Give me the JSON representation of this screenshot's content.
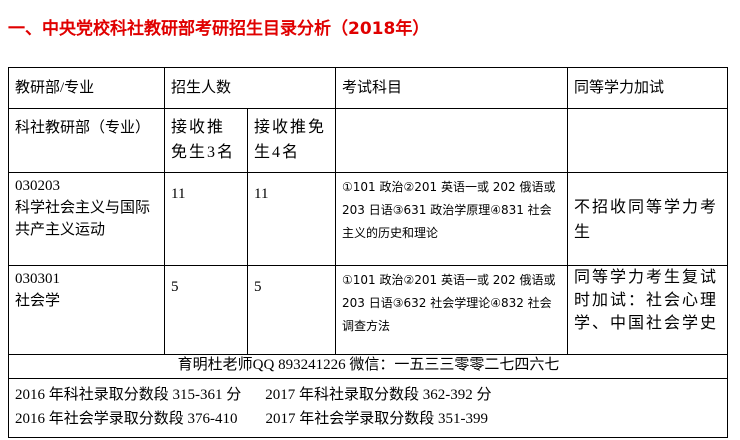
{
  "title": "一、中央党校科社教研部考研招生目录分析（2018年）",
  "header": {
    "dept": "教研部/专业",
    "enroll": "招生人数",
    "exam": "考试科目",
    "equiv": "同等学力加试"
  },
  "sub": {
    "dept": "科社教研部（专业）",
    "col1": "接收推免生3名",
    "col2": "接收推免生4名"
  },
  "rows": [
    {
      "code": "030203",
      "name": "科学社会主义与国际共产主义运动",
      "n1": "11",
      "n2": "11",
      "exam": "①101 政治②201 英语一或 202 俄语或 203 日语③631 政治学原理④831 社会主义的历史和理论",
      "equiv": "不招收同等学力考生"
    },
    {
      "code": "030301",
      "name": "社会学",
      "n1": "5",
      "n2": "5",
      "exam": "①101 政治②201 英语一或 202 俄语或 203 日语③632 社会学理论④832 社会调查方法",
      "equiv": "同等学力考生复试时加试：社会心理学、中国社会学史"
    }
  ],
  "contact": "育明杜老师QQ 893241226 微信：一五三三零零二七四六七",
  "scores": [
    "2016 年科社录取分数段 315-361 分",
    "2017 年科社录取分数段 362-392 分",
    "2016 年社会学录取分数段 376-410",
    "2017 年社会学录取分数段 351-399"
  ],
  "colors": {
    "title": "#e00000"
  }
}
